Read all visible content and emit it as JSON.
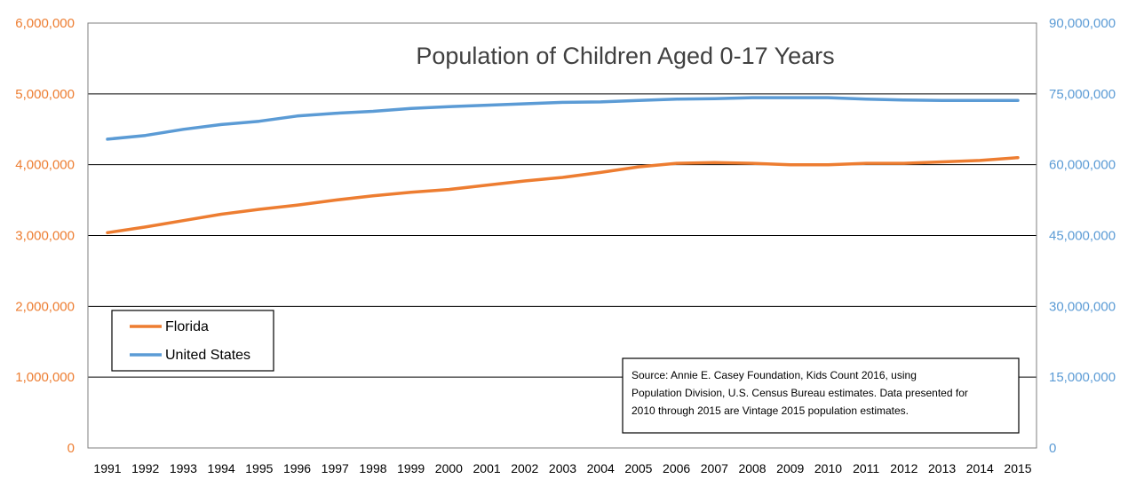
{
  "chart_data": {
    "type": "line",
    "title": "Population of Children Aged 0-17 Years",
    "categories": [
      "1991",
      "1992",
      "1993",
      "1994",
      "1995",
      "1996",
      "1997",
      "1998",
      "1999",
      "2000",
      "2001",
      "2002",
      "2003",
      "2004",
      "2005",
      "2006",
      "2007",
      "2008",
      "2009",
      "2010",
      "2011",
      "2012",
      "2013",
      "2014",
      "2015"
    ],
    "series": [
      {
        "name": "Florida",
        "axis": "left",
        "color": "#ED7D31",
        "values": [
          3040000,
          3120000,
          3210000,
          3300000,
          3370000,
          3430000,
          3500000,
          3560000,
          3610000,
          3650000,
          3710000,
          3770000,
          3820000,
          3890000,
          3970000,
          4020000,
          4030000,
          4020000,
          4000000,
          4000000,
          4020000,
          4020000,
          4040000,
          4060000,
          4100000
        ]
      },
      {
        "name": "United States",
        "axis": "right",
        "color": "#5B9BD5",
        "values": [
          65400000,
          66200000,
          67500000,
          68500000,
          69200000,
          70300000,
          70900000,
          71300000,
          71900000,
          72300000,
          72600000,
          72900000,
          73200000,
          73300000,
          73600000,
          73900000,
          74000000,
          74200000,
          74200000,
          74200000,
          73900000,
          73700000,
          73600000,
          73600000,
          73600000
        ]
      }
    ],
    "y_left": {
      "ylim": [
        0,
        6000000
      ],
      "ticks": [
        "0",
        "1,000,000",
        "2,000,000",
        "3,000,000",
        "4,000,000",
        "5,000,000",
        "6,000,000"
      ]
    },
    "y_right": {
      "ylim": [
        0,
        90000000
      ],
      "ticks": [
        "0",
        "15,000,000",
        "30,000,000",
        "45,000,000",
        "60,000,000",
        "75,000,000",
        "90,000,000"
      ]
    },
    "grid": true,
    "legend_placement": "lower-left",
    "source_note": [
      "Source: Annie E. Casey Foundation, Kids Count 2016, using",
      "Population Division, U.S. Census Bureau estimates. Data presented for",
      "2010 through 2015 are Vintage 2015 population estimates."
    ]
  }
}
